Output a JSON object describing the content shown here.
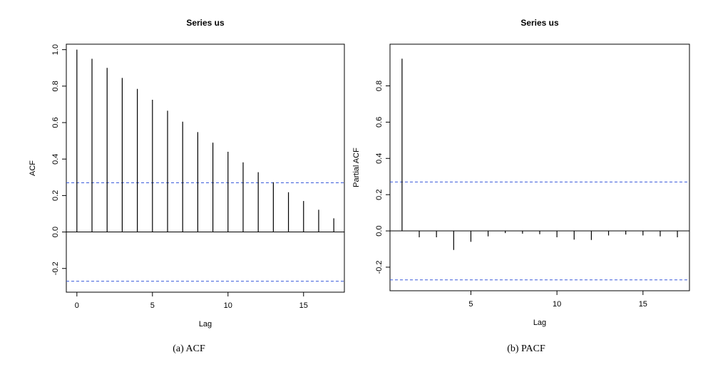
{
  "captions": {
    "a": "(a) ACF",
    "b": "(b) PACF"
  },
  "colors": {
    "ci_line": "#3b5bdb",
    "stem": "#000000",
    "frame": "#000000"
  },
  "chart_data": [
    {
      "type": "bar",
      "title": "Series us",
      "xlabel": "Lag",
      "ylabel": "ACF",
      "xlim": [
        -0.7,
        17.7
      ],
      "ylim": [
        -0.33,
        1.03
      ],
      "x_ticks": [
        0,
        5,
        10,
        15
      ],
      "y_ticks": [
        -0.2,
        0.0,
        0.2,
        0.4,
        0.6,
        0.8,
        1.0
      ],
      "y_tick_labels": [
        "-0.2",
        "0.0",
        "0.2",
        "0.4",
        "0.6",
        "0.8",
        "1.0"
      ],
      "zero_line": true,
      "confidence_bound": 0.27,
      "lags": [
        0,
        1,
        2,
        3,
        4,
        5,
        6,
        7,
        8,
        9,
        10,
        11,
        12,
        13,
        14,
        15,
        16,
        17
      ],
      "values": [
        1.0,
        0.95,
        0.9,
        0.845,
        0.785,
        0.725,
        0.665,
        0.605,
        0.548,
        0.49,
        0.44,
        0.382,
        0.328,
        0.273,
        0.218,
        0.17,
        0.122,
        0.075
      ]
    },
    {
      "type": "bar",
      "title": "Series us",
      "xlabel": "Lag",
      "ylabel": "Partial ACF",
      "xlim": [
        0.3,
        17.7
      ],
      "ylim": [
        -0.33,
        1.03
      ],
      "x_ticks": [
        5,
        10,
        15
      ],
      "y_ticks": [
        -0.2,
        0.0,
        0.2,
        0.4,
        0.6,
        0.8
      ],
      "y_tick_labels": [
        "-0.2",
        "0.0",
        "0.2",
        "0.4",
        "0.6",
        "0.8"
      ],
      "zero_line": true,
      "confidence_bound": 0.27,
      "lags": [
        1,
        2,
        3,
        4,
        5,
        6,
        7,
        8,
        9,
        10,
        11,
        12,
        13,
        14,
        15,
        16,
        17
      ],
      "values": [
        0.95,
        -0.035,
        -0.035,
        -0.105,
        -0.06,
        -0.03,
        -0.012,
        -0.015,
        -0.018,
        -0.035,
        -0.048,
        -0.05,
        -0.025,
        -0.02,
        -0.025,
        -0.03,
        -0.035
      ]
    }
  ]
}
